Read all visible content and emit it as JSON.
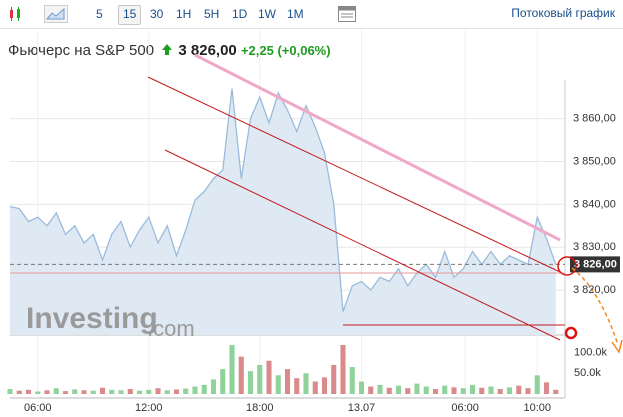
{
  "toolbar": {
    "intervals": [
      "5",
      "15",
      "30",
      "1H",
      "5H",
      "1D",
      "1W",
      "1M"
    ],
    "selected": 1,
    "stream_label": "Потоковый график"
  },
  "chart_data": {
    "type": "area",
    "title": "Фьючерс на S&P 500",
    "price_label": "3 826,00",
    "change_label": "+2,25 (+0,06%)",
    "watermark": [
      "Investing",
      ".com"
    ],
    "line_color": "#9bbbdc",
    "fill_color": "#dfe9f4",
    "grid": true,
    "x": [
      4.5,
      5,
      5.5,
      6,
      6.5,
      7,
      7.5,
      8,
      8.5,
      9,
      9.5,
      10,
      10.5,
      11,
      11.5,
      12,
      12.5,
      13,
      13.5,
      14,
      14.5,
      15,
      15.5,
      16,
      16.5,
      17,
      17.5,
      18,
      18.5,
      19,
      19.5,
      20,
      20.5,
      21,
      21.5,
      22,
      22.5,
      23,
      23.5,
      24,
      24.5,
      25,
      25.5,
      26,
      26.5,
      27,
      27.5,
      28,
      28.5,
      29,
      29.5,
      30,
      30.5,
      31,
      31.5,
      32,
      32.5,
      33,
      33.5,
      34
    ],
    "values": [
      3839.5,
      3839,
      3836,
      3837,
      3835,
      3838,
      3833,
      3835,
      3831,
      3833,
      3827,
      3833,
      3836,
      3830,
      3834,
      3837,
      3831,
      3835,
      3828,
      3834,
      3841,
      3843,
      3846,
      3848,
      3867,
      3846,
      3860,
      3865,
      3859,
      3866,
      3862,
      3857,
      3863,
      3858,
      3852,
      3840,
      3815,
      3821,
      3822,
      3820,
      3823,
      3822,
      3825,
      3821,
      3824,
      3826,
      3823,
      3829,
      3823,
      3825,
      3829,
      3826,
      3829,
      3826,
      3828,
      3827,
      3826,
      3837,
      3832,
      3826
    ],
    "volume": [
      12,
      8,
      10,
      6,
      9,
      14,
      7,
      11,
      9,
      8,
      15,
      10,
      9,
      12,
      8,
      10,
      14,
      9,
      11,
      13,
      18,
      22,
      35,
      60,
      118,
      90,
      55,
      70,
      80,
      45,
      60,
      38,
      50,
      30,
      40,
      70,
      118,
      65,
      30,
      18,
      22,
      15,
      20,
      14,
      25,
      18,
      12,
      20,
      16,
      14,
      22,
      15,
      18,
      12,
      16,
      20,
      14,
      45,
      28,
      10
    ],
    "volume_up_color": "#8fd39b",
    "volume_down_color": "#d98a8a",
    "xlim": [
      4.5,
      34.5
    ],
    "xticks": [
      {
        "value": 6,
        "label": "06:00"
      },
      {
        "value": 12,
        "label": "12:00"
      },
      {
        "value": 18,
        "label": "18:00"
      },
      {
        "value": 23.5,
        "label": "13.07"
      },
      {
        "value": 29.1,
        "label": "06:00"
      },
      {
        "value": 33,
        "label": "10:00"
      }
    ],
    "ylim": [
      3810,
      3869
    ],
    "yticks": [
      {
        "value": 3820,
        "label": "3 820,00"
      },
      {
        "value": 3830,
        "label": "3 830,00"
      },
      {
        "value": 3840,
        "label": "3 840,00"
      },
      {
        "value": 3850,
        "label": "3 850,00"
      },
      {
        "value": 3860,
        "label": "3 860,00"
      }
    ],
    "vlim": [
      0,
      130
    ],
    "vticks": [
      {
        "value": 50,
        "label": "50.0k"
      },
      {
        "value": 100,
        "label": "100.0k"
      }
    ]
  }
}
